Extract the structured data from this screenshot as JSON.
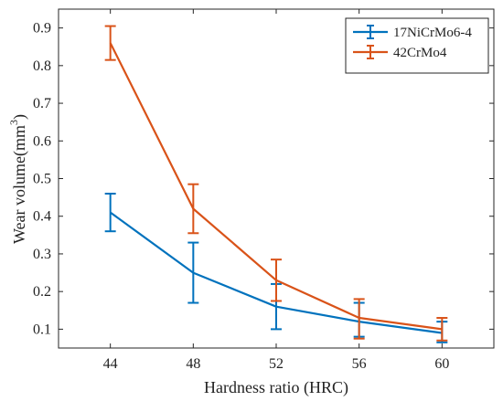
{
  "chart_data": {
    "type": "line",
    "error_bars": true,
    "xlabel": "Hardness ratio (HRC)",
    "ylabel": "Wear volume(mm",
    "ylabel_superscript": "3",
    "ylabel_suffix": ")",
    "x": [
      44,
      48,
      52,
      56,
      60
    ],
    "x_ticks": [
      "44",
      "48",
      "52",
      "56",
      "60"
    ],
    "xlim": [
      41.5,
      62.5
    ],
    "ylim": [
      0.05,
      0.95
    ],
    "y_ticks": [
      "0.1",
      "0.2",
      "0.3",
      "0.4",
      "0.5",
      "0.6",
      "0.7",
      "0.8",
      "0.9"
    ],
    "grid": false,
    "legend_position": "top-right",
    "series": [
      {
        "name": "17NiCrMo6-4",
        "color": "#0072BD",
        "values": [
          0.41,
          0.25,
          0.16,
          0.12,
          0.09
        ],
        "err_low": [
          0.36,
          0.17,
          0.1,
          0.08,
          0.065
        ],
        "err_high": [
          0.46,
          0.33,
          0.22,
          0.17,
          0.12
        ]
      },
      {
        "name": "42CrMo4",
        "color": "#D95319",
        "values": [
          0.86,
          0.42,
          0.23,
          0.13,
          0.1
        ],
        "err_low": [
          0.815,
          0.355,
          0.175,
          0.075,
          0.07
        ],
        "err_high": [
          0.905,
          0.485,
          0.285,
          0.18,
          0.13
        ]
      }
    ]
  }
}
